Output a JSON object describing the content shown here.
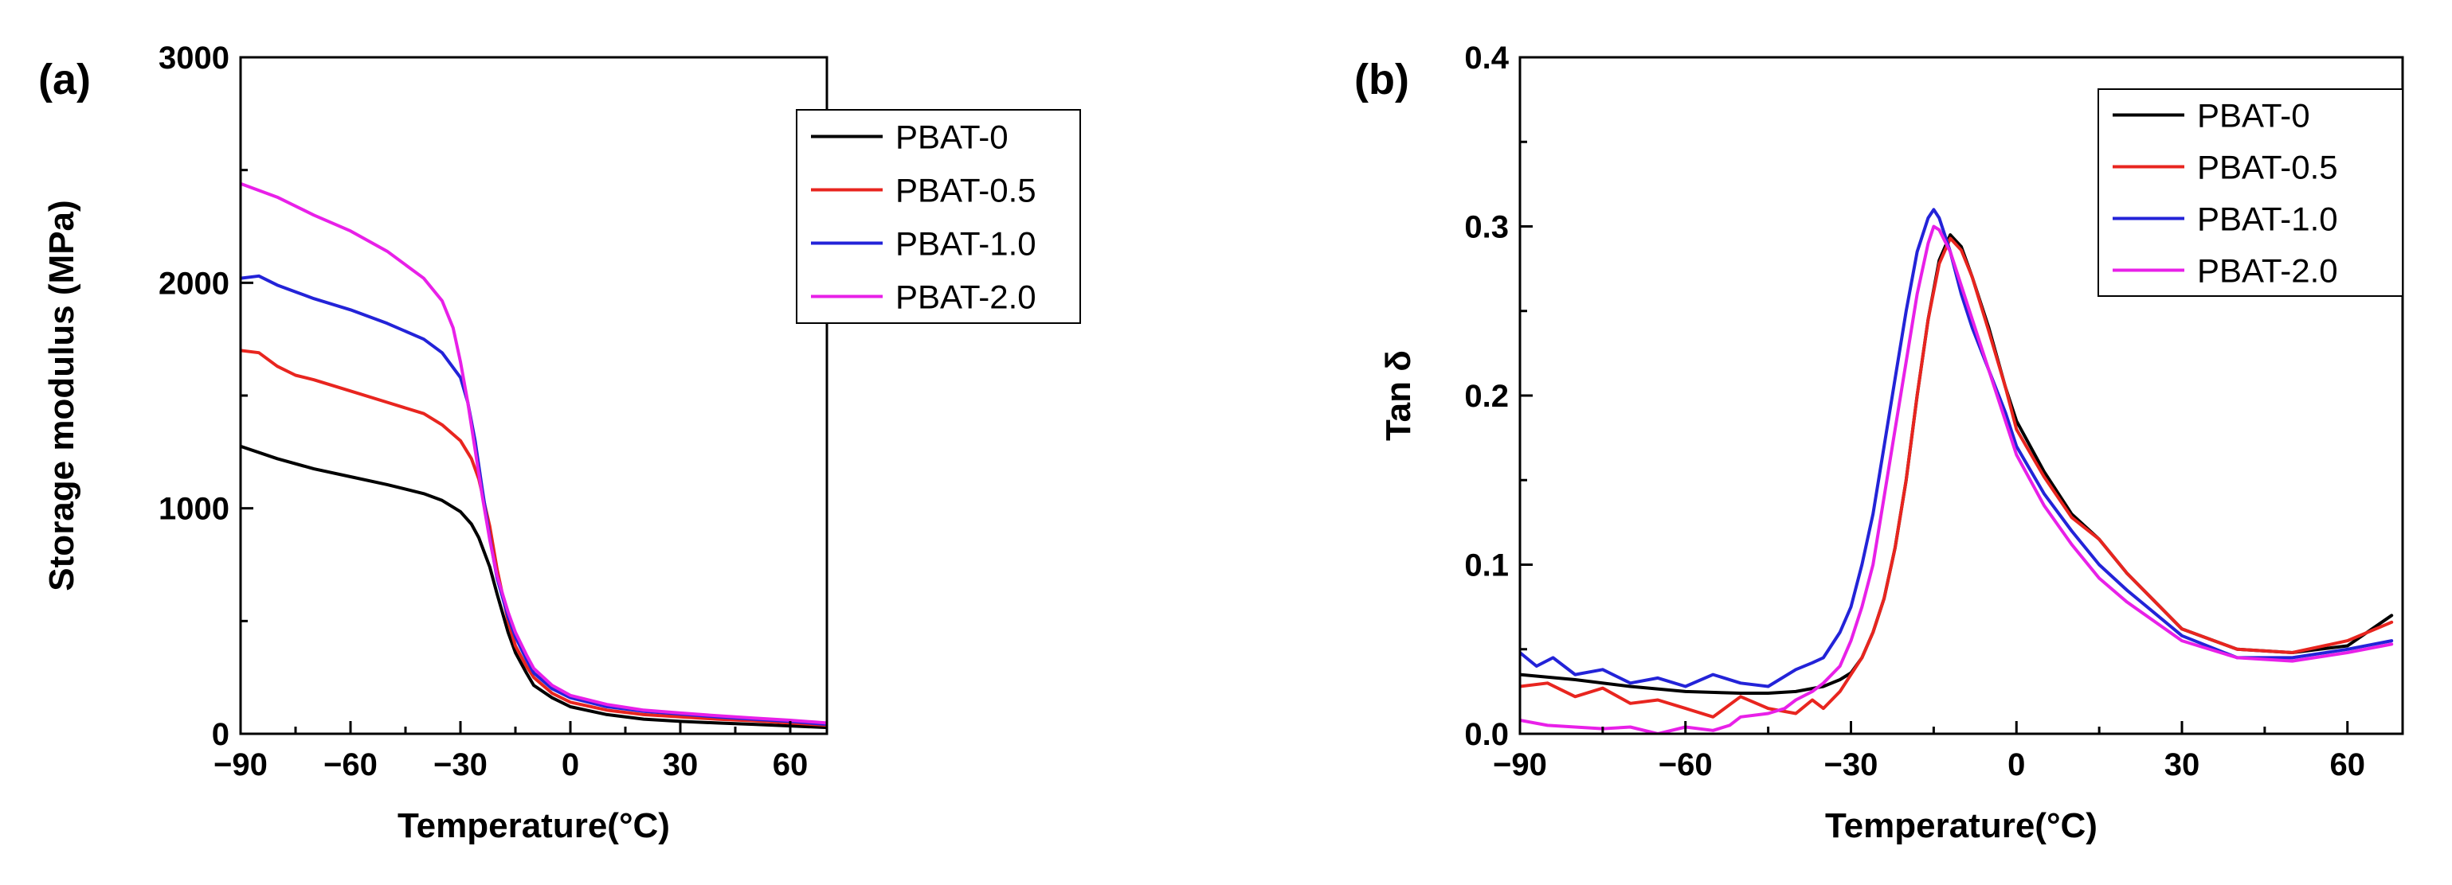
{
  "chart_data": [
    {
      "type": "line",
      "panel_label": "(a)",
      "xlabel": "Temperature(°C)",
      "ylabel": "Storage modulus (MPa)",
      "xlim": [
        -90,
        70
      ],
      "ylim": [
        0,
        3000
      ],
      "x_ticks": [
        -90,
        -60,
        -30,
        0,
        30,
        60
      ],
      "x_tick_labels": [
        "−90",
        "−60",
        "−30",
        "0",
        "30",
        "60"
      ],
      "y_ticks": [
        0,
        1000,
        2000,
        3000
      ],
      "y_tick_labels": [
        "0",
        "1000",
        "2000",
        "3000"
      ],
      "legend_position": "top-right",
      "series": [
        {
          "name": "PBAT-0",
          "color": "#000000",
          "x": [
            -90,
            -80,
            -70,
            -60,
            -50,
            -40,
            -35,
            -30,
            -27,
            -25,
            -22,
            -20,
            -17,
            -15,
            -12,
            -10,
            -5,
            0,
            10,
            20,
            30,
            40,
            50,
            60,
            70
          ],
          "y": [
            1275,
            1220,
            1175,
            1140,
            1105,
            1065,
            1035,
            985,
            930,
            870,
            740,
            620,
            450,
            360,
            270,
            215,
            160,
            120,
            85,
            65,
            55,
            48,
            42,
            35,
            28
          ]
        },
        {
          "name": "PBAT-0.5",
          "color": "#e8251f",
          "x": [
            -90,
            -85,
            -80,
            -75,
            -70,
            -60,
            -50,
            -40,
            -35,
            -30,
            -27,
            -25,
            -22,
            -20,
            -17,
            -15,
            -12,
            -10,
            -5,
            0,
            10,
            20,
            30,
            40,
            50,
            60,
            70
          ],
          "y": [
            1700,
            1690,
            1630,
            1590,
            1570,
            1520,
            1470,
            1420,
            1370,
            1300,
            1220,
            1130,
            920,
            730,
            500,
            390,
            300,
            250,
            180,
            140,
            105,
            85,
            75,
            65,
            58,
            48,
            38
          ]
        },
        {
          "name": "PBAT-1.0",
          "color": "#2323d8",
          "x": [
            -90,
            -85,
            -80,
            -75,
            -70,
            -60,
            -50,
            -40,
            -35,
            -30,
            -28,
            -26,
            -24,
            -22,
            -20,
            -17,
            -15,
            -12,
            -10,
            -5,
            0,
            10,
            20,
            30,
            40,
            50,
            60,
            70
          ],
          "y": [
            2020,
            2030,
            1990,
            1960,
            1930,
            1880,
            1820,
            1750,
            1690,
            1580,
            1470,
            1300,
            1080,
            870,
            690,
            520,
            430,
            330,
            270,
            200,
            160,
            120,
            100,
            88,
            75,
            65,
            55,
            42
          ]
        },
        {
          "name": "PBAT-2.0",
          "color": "#e820e8",
          "x": [
            -90,
            -80,
            -70,
            -60,
            -50,
            -40,
            -35,
            -32,
            -30,
            -28,
            -26,
            -24,
            -22,
            -20,
            -17,
            -15,
            -12,
            -10,
            -5,
            0,
            10,
            20,
            30,
            40,
            50,
            60,
            70
          ],
          "y": [
            2440,
            2380,
            2300,
            2230,
            2140,
            2020,
            1920,
            1800,
            1650,
            1470,
            1260,
            1050,
            860,
            700,
            540,
            450,
            350,
            290,
            215,
            170,
            130,
            105,
            92,
            80,
            70,
            60,
            48
          ]
        }
      ]
    },
    {
      "type": "line",
      "panel_label": "(b)",
      "xlabel": "Temperature(°C)",
      "ylabel": "Tan δ",
      "xlim": [
        -90,
        70
      ],
      "ylim": [
        0,
        0.4
      ],
      "x_ticks": [
        -90,
        -60,
        -30,
        0,
        30,
        60
      ],
      "x_tick_labels": [
        "−90",
        "−60",
        "−30",
        "0",
        "30",
        "60"
      ],
      "y_ticks": [
        0,
        0.1,
        0.2,
        0.3,
        0.4
      ],
      "y_tick_labels": [
        "0.0",
        "0.1",
        "0.2",
        "0.3",
        "0.4"
      ],
      "legend_position": "top-right",
      "series": [
        {
          "name": "PBAT-0",
          "color": "#000000",
          "x": [
            -90,
            -80,
            -70,
            -60,
            -50,
            -45,
            -40,
            -35,
            -32,
            -30,
            -28,
            -26,
            -24,
            -22,
            -20,
            -18,
            -16,
            -14,
            -12,
            -10,
            -8,
            -5,
            -2,
            0,
            5,
            10,
            15,
            20,
            30,
            40,
            50,
            60,
            68
          ],
          "y": [
            0.035,
            0.032,
            0.028,
            0.025,
            0.024,
            0.024,
            0.025,
            0.028,
            0.032,
            0.036,
            0.045,
            0.06,
            0.08,
            0.11,
            0.15,
            0.2,
            0.245,
            0.28,
            0.295,
            0.288,
            0.27,
            0.24,
            0.205,
            0.185,
            0.155,
            0.13,
            0.115,
            0.095,
            0.062,
            0.05,
            0.048,
            0.052,
            0.07
          ]
        },
        {
          "name": "PBAT-0.5",
          "color": "#e8251f",
          "x": [
            -90,
            -85,
            -80,
            -75,
            -70,
            -65,
            -60,
            -55,
            -50,
            -45,
            -40,
            -37,
            -35,
            -32,
            -30,
            -28,
            -26,
            -24,
            -22,
            -20,
            -18,
            -16,
            -14,
            -12,
            -10,
            -8,
            -5,
            -2,
            0,
            5,
            10,
            15,
            20,
            30,
            40,
            50,
            60,
            68
          ],
          "y": [
            0.028,
            0.03,
            0.022,
            0.027,
            0.018,
            0.02,
            0.015,
            0.01,
            0.022,
            0.015,
            0.012,
            0.02,
            0.015,
            0.025,
            0.035,
            0.045,
            0.06,
            0.08,
            0.11,
            0.15,
            0.2,
            0.245,
            0.278,
            0.293,
            0.286,
            0.27,
            0.238,
            0.205,
            0.18,
            0.152,
            0.128,
            0.115,
            0.095,
            0.062,
            0.05,
            0.048,
            0.055,
            0.066
          ]
        },
        {
          "name": "PBAT-1.0",
          "color": "#2323d8",
          "x": [
            -90,
            -87,
            -84,
            -80,
            -75,
            -70,
            -65,
            -60,
            -55,
            -50,
            -45,
            -40,
            -37,
            -35,
            -32,
            -30,
            -28,
            -26,
            -24,
            -22,
            -20,
            -18,
            -16,
            -15,
            -14,
            -12,
            -10,
            -8,
            -5,
            -2,
            0,
            5,
            10,
            15,
            20,
            30,
            40,
            50,
            60,
            68
          ],
          "y": [
            0.048,
            0.04,
            0.045,
            0.035,
            0.038,
            0.03,
            0.033,
            0.028,
            0.035,
            0.03,
            0.028,
            0.038,
            0.042,
            0.045,
            0.06,
            0.075,
            0.1,
            0.13,
            0.17,
            0.21,
            0.25,
            0.285,
            0.305,
            0.31,
            0.305,
            0.285,
            0.26,
            0.24,
            0.215,
            0.19,
            0.17,
            0.142,
            0.12,
            0.1,
            0.085,
            0.058,
            0.045,
            0.045,
            0.05,
            0.055
          ]
        },
        {
          "name": "PBAT-2.0",
          "color": "#e820e8",
          "x": [
            -90,
            -85,
            -80,
            -75,
            -70,
            -65,
            -60,
            -55,
            -52,
            -50,
            -45,
            -42,
            -40,
            -37,
            -35,
            -32,
            -30,
            -28,
            -26,
            -24,
            -22,
            -20,
            -18,
            -16,
            -15,
            -14,
            -12,
            -10,
            -8,
            -5,
            -2,
            0,
            5,
            10,
            15,
            20,
            30,
            40,
            50,
            60,
            68
          ],
          "y": [
            0.008,
            0.005,
            0.004,
            0.003,
            0.004,
            0.0,
            0.004,
            0.002,
            0.005,
            0.01,
            0.012,
            0.015,
            0.02,
            0.025,
            0.03,
            0.04,
            0.055,
            0.075,
            0.1,
            0.14,
            0.18,
            0.22,
            0.26,
            0.29,
            0.3,
            0.298,
            0.285,
            0.265,
            0.245,
            0.215,
            0.185,
            0.165,
            0.135,
            0.112,
            0.092,
            0.078,
            0.055,
            0.045,
            0.043,
            0.048,
            0.053
          ]
        }
      ]
    }
  ]
}
